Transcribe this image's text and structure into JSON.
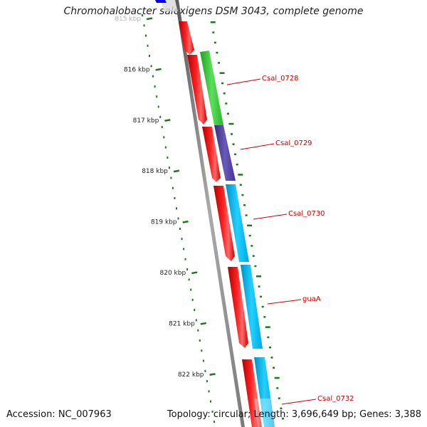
{
  "title": "Chromohalobacter salexigens DSM 3043, complete genome",
  "footer": {
    "accession": "Accession: NC_007963",
    "summary": "Topology: circular; Length: 3,696,649 bp; Genes: 3,388"
  },
  "ruler": {
    "unit": "kbp",
    "labels": [
      {
        "text": "815 kbp",
        "kbp": 815
      },
      {
        "text": "816 kbp",
        "kbp": 816
      },
      {
        "text": "817 kbp",
        "kbp": 817
      },
      {
        "text": "818 kbp",
        "kbp": 818
      },
      {
        "text": "819 kbp",
        "kbp": 819
      },
      {
        "text": "820 kbp",
        "kbp": 820
      },
      {
        "text": "821 kbp",
        "kbp": 821
      },
      {
        "text": "822 kbp",
        "kbp": 822
      }
    ]
  },
  "gene_labels": [
    {
      "text": "Csal_0728"
    },
    {
      "text": "Csal_0729"
    },
    {
      "text": "Csal_0730"
    },
    {
      "text": "guaA"
    },
    {
      "text": "Csal_0732"
    }
  ],
  "colors": {
    "cds": "#ff0000",
    "green_gene": "#3cc83c",
    "purple_gene": "#4b3c96",
    "cyan_gene": "#00c0f0",
    "blue_gene": "#0000ff",
    "backbone": "#888888",
    "ruler_ticks": "#1a7a1a",
    "label_lines": "#cc0000"
  }
}
